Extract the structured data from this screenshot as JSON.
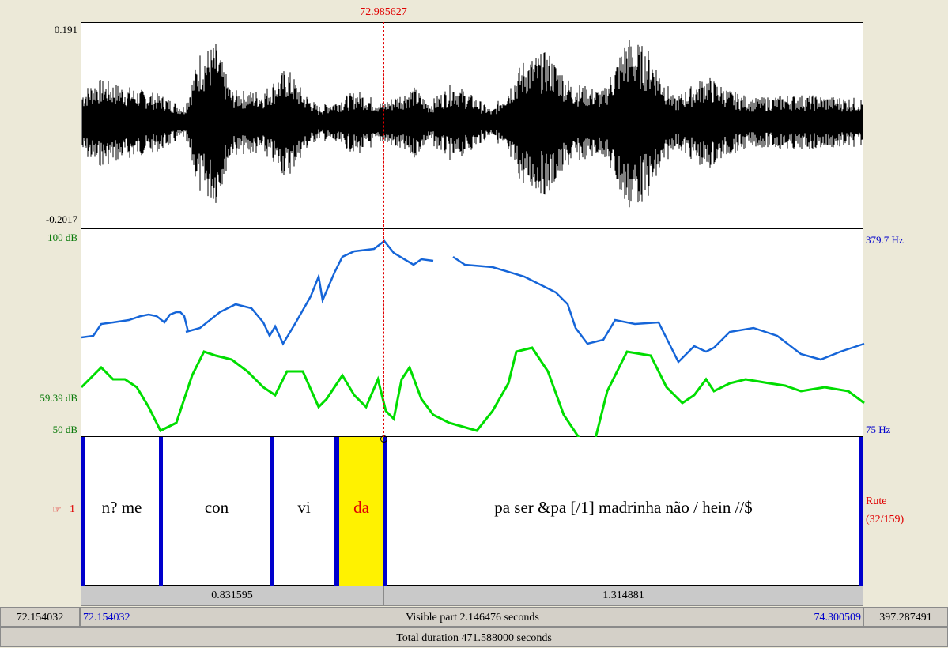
{
  "cursor": {
    "time": "72.985627",
    "color": "#E00000"
  },
  "waveform": {
    "max_label": "0.191",
    "min_label": "-0.2017"
  },
  "intensity_axis": {
    "top": "100 dB",
    "mid": "59.39 dB",
    "bottom": "50 dB",
    "color": "#0A7A0A",
    "curve_color": "#00DD00"
  },
  "pitch_axis": {
    "top": "379.7 Hz",
    "bottom": "75 Hz",
    "color": "#0000CC",
    "curve_color": "#1565D8"
  },
  "tier": {
    "number_label": "1",
    "name": "Rute",
    "count": "(32/159)",
    "name_color": "#E00000",
    "boundary_color": "#0000CC",
    "selected_color": "#FFF200",
    "segments": [
      {
        "text": "n? me",
        "selected": false
      },
      {
        "text": "con",
        "selected": false
      },
      {
        "text": "vi",
        "selected": false
      },
      {
        "text": "da",
        "selected": true
      },
      {
        "text": "pa ser &pa [/1] madrinha não / hein //$",
        "selected": false
      }
    ]
  },
  "selection_bar": {
    "left_duration": "0.831595",
    "right_duration": "1.314881"
  },
  "footer": {
    "window_start": "72.154032",
    "visible_start": "72.154032",
    "visible_label": "Visible part 2.146476 seconds",
    "visible_end": "74.300509",
    "window_end": "397.287491",
    "total_label": "Total duration 471.588000 seconds"
  }
}
